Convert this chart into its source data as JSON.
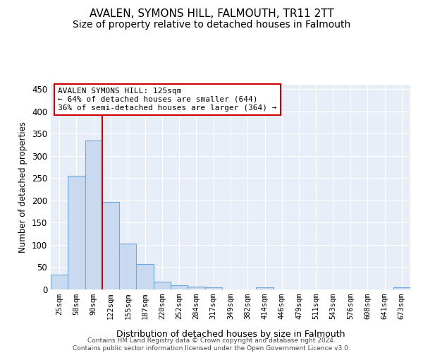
{
  "title": "AVALEN, SYMONS HILL, FALMOUTH, TR11 2TT",
  "subtitle": "Size of property relative to detached houses in Falmouth",
  "xlabel": "Distribution of detached houses by size in Falmouth",
  "ylabel": "Number of detached properties",
  "bin_labels": [
    "25sqm",
    "58sqm",
    "90sqm",
    "122sqm",
    "155sqm",
    "187sqm",
    "220sqm",
    "252sqm",
    "284sqm",
    "317sqm",
    "349sqm",
    "382sqm",
    "414sqm",
    "446sqm",
    "479sqm",
    "511sqm",
    "543sqm",
    "576sqm",
    "608sqm",
    "641sqm",
    "673sqm"
  ],
  "bar_values": [
    33,
    255,
    335,
    197,
    103,
    57,
    17,
    10,
    7,
    4,
    0,
    0,
    4,
    0,
    0,
    0,
    0,
    0,
    0,
    0,
    4
  ],
  "bar_color": "#c9d9f0",
  "bar_edge_color": "#6fa8dc",
  "vline_color": "#cc0000",
  "box_color": "#ffffff",
  "box_edge_color": "#cc0000",
  "ylim": [
    0,
    460
  ],
  "yticks": [
    0,
    50,
    100,
    150,
    200,
    250,
    300,
    350,
    400,
    450
  ],
  "title_fontsize": 11,
  "subtitle_fontsize": 10,
  "annotation_fontsize": 8,
  "footer_text": "Contains HM Land Registry data © Crown copyright and database right 2024.\nContains public sector information licensed under the Open Government Licence v3.0.",
  "annotation_line1": "AVALEN SYMONS HILL: 125sqm",
  "annotation_line2": "← 64% of detached houses are smaller (644)",
  "annotation_line3": "36% of semi-detached houses are larger (364) →",
  "background_color": "#e8eef7",
  "grid_color": "#ffffff",
  "vline_bin_index": 2.5
}
